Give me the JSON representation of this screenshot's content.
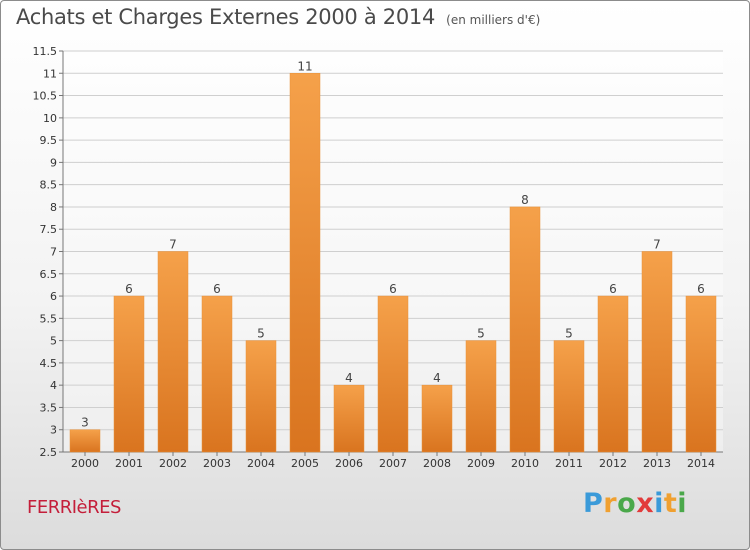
{
  "chart_data": {
    "type": "bar",
    "title": "Achats et Charges Externes 2000 à 2014",
    "subtitle": "(en milliers d'€)",
    "categories": [
      "2000",
      "2001",
      "2002",
      "2003",
      "2004",
      "2005",
      "2006",
      "2007",
      "2008",
      "2009",
      "2010",
      "2011",
      "2012",
      "2013",
      "2014"
    ],
    "values": [
      3,
      6,
      7,
      6,
      5,
      11,
      4,
      6,
      4,
      5,
      8,
      5,
      6,
      7,
      6
    ],
    "ylim": [
      2.5,
      11.5
    ],
    "yticks": [
      "2.5",
      "3",
      "3.5",
      "4",
      "4.5",
      "5",
      "5.5",
      "6",
      "6.5",
      "7",
      "7.5",
      "8",
      "8.5",
      "9",
      "9.5",
      "10",
      "10.5",
      "11",
      "11.5"
    ],
    "xlabel": "",
    "ylabel": "",
    "grid": true,
    "bar_color": "#f5a14a",
    "bar_color_dark": "#d9741f"
  },
  "footer": {
    "commune": "FERRIèRES",
    "logo_letters": [
      "P",
      "r",
      "o",
      "x",
      "i",
      "t",
      "i"
    ],
    "logo_colors": [
      "#3a9ad9",
      "#f0a030",
      "#4aa84a",
      "#e23b3b",
      "#3a9ad9",
      "#f0a030",
      "#4aa84a"
    ]
  }
}
